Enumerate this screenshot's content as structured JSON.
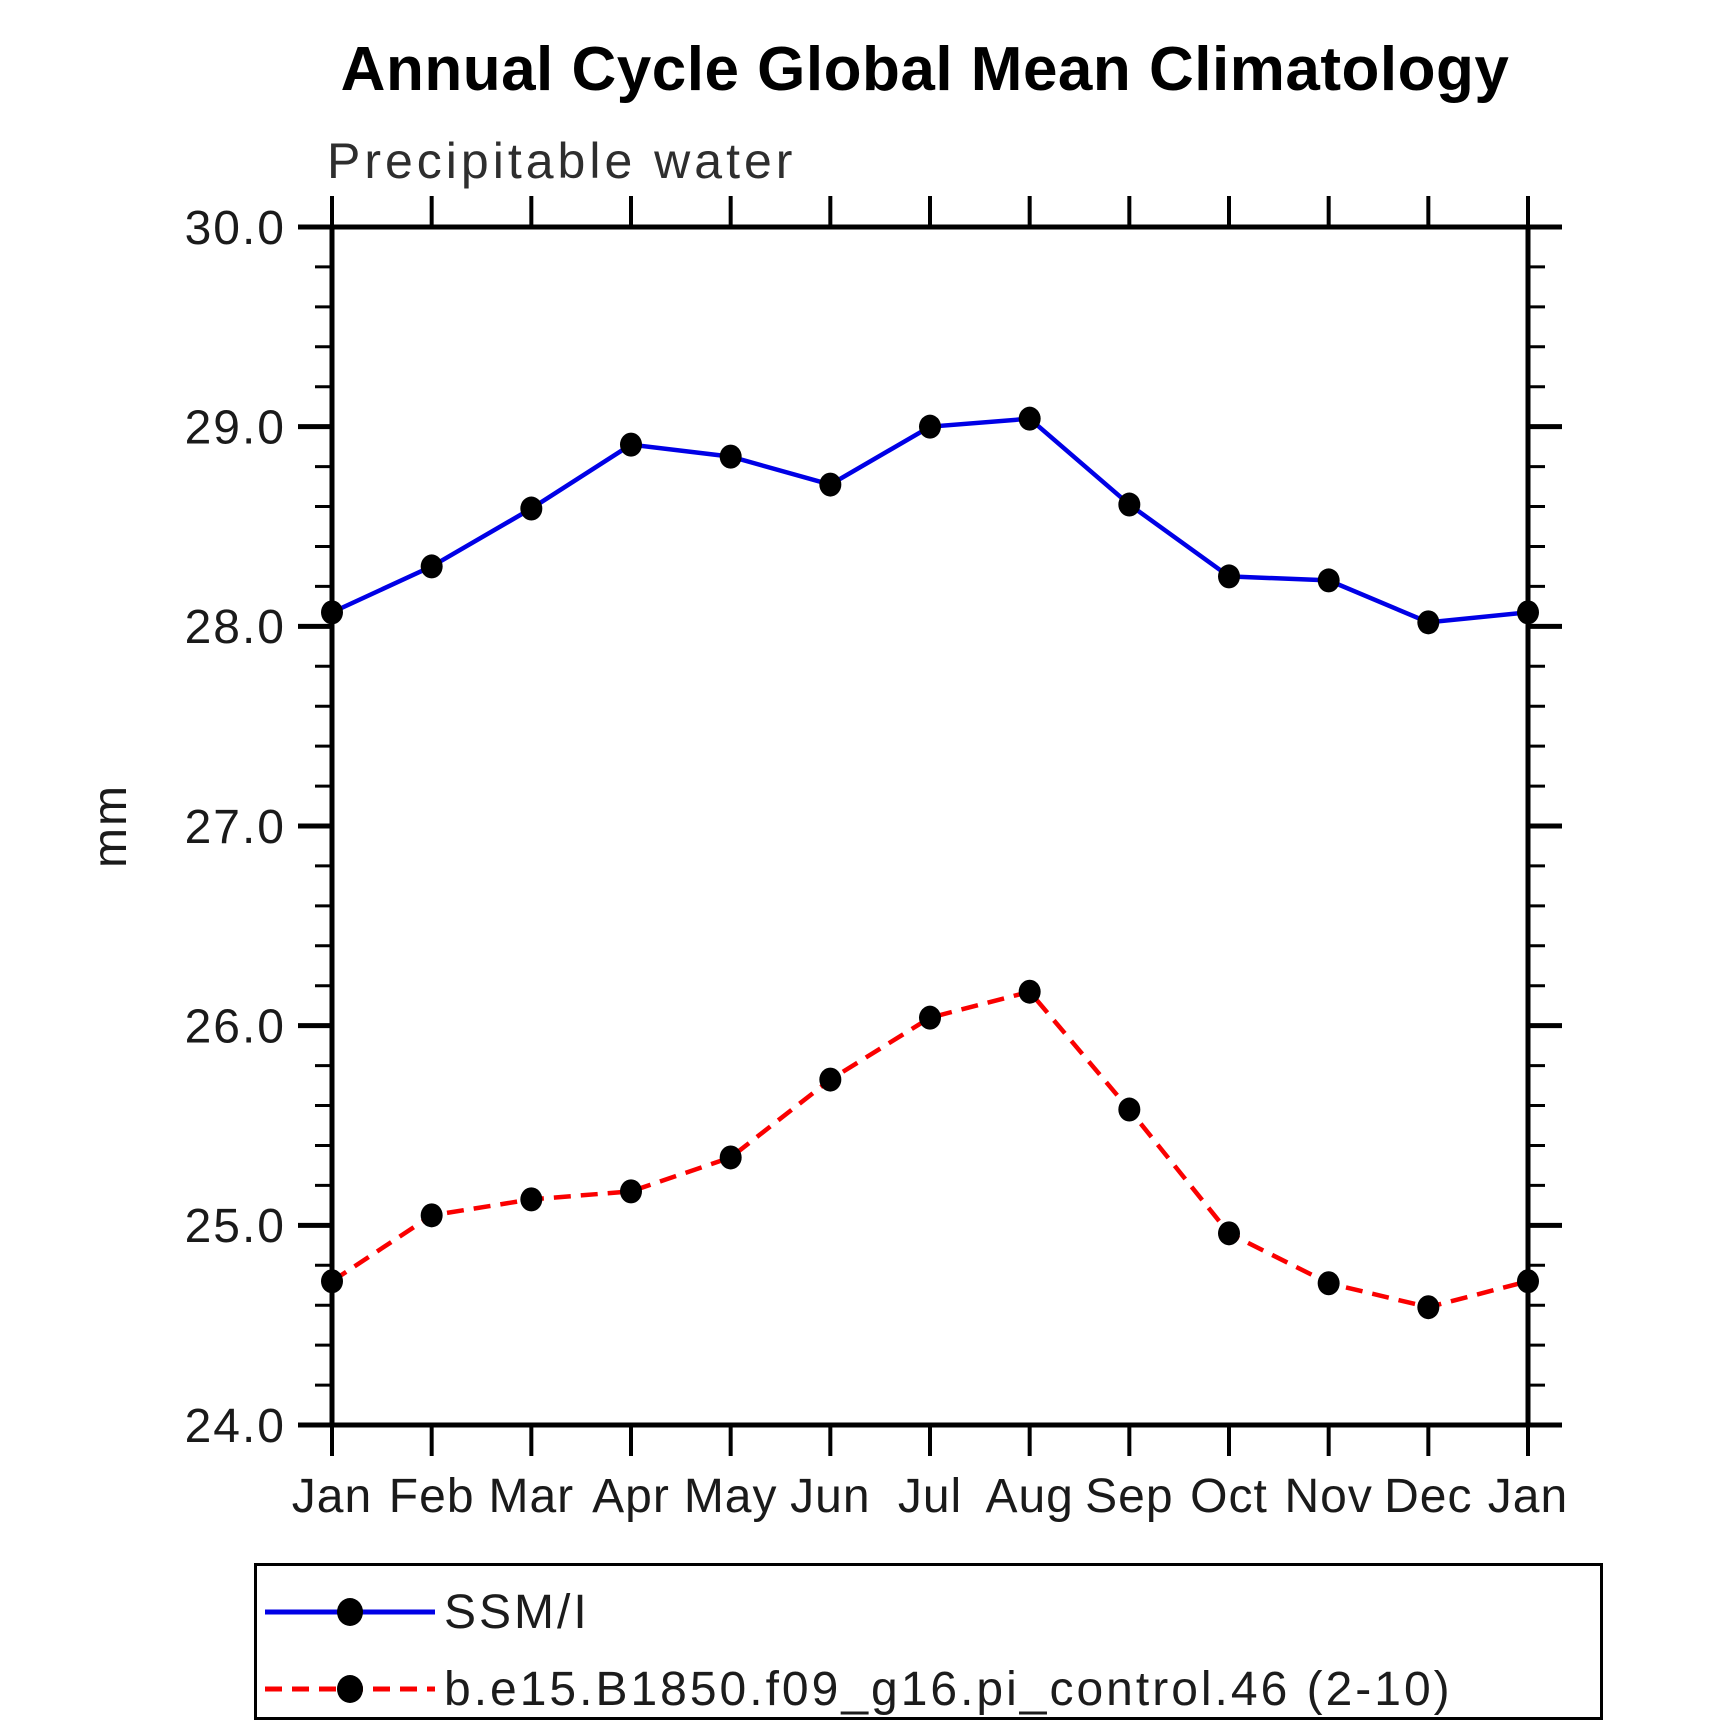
{
  "title": "Annual Cycle Global Mean Climatology",
  "subtitle": "Precipitable water",
  "chart_data": {
    "type": "line",
    "title": "Annual Cycle Global Mean Climatology",
    "subtitle": "Precipitable water",
    "xlabel": "",
    "ylabel": "mm",
    "categories": [
      "Jan",
      "Feb",
      "Mar",
      "Apr",
      "May",
      "Jun",
      "Jul",
      "Aug",
      "Sep",
      "Oct",
      "Nov",
      "Dec",
      "Jan"
    ],
    "ylim": [
      24.0,
      30.0
    ],
    "ytick_major_step": 1.0,
    "ytick_minor_step": 0.2,
    "ytick_labels": [
      "24.0",
      "25.0",
      "26.0",
      "27.0",
      "28.0",
      "29.0",
      "30.0"
    ],
    "grid": false,
    "legend_position": "bottom-left-box",
    "frame_color": "#000000",
    "marker_color": "#000000",
    "series": [
      {
        "name": "SSM/I",
        "color": "#0000e6",
        "line_style": "solid",
        "marker": "circle",
        "values": [
          28.07,
          28.3,
          28.59,
          28.91,
          28.85,
          28.71,
          29.0,
          29.04,
          28.61,
          28.25,
          28.23,
          28.02,
          28.07
        ]
      },
      {
        "name": "b.e15.B1850.f09_g16.pi_control.46 (2-10)",
        "color": "#fa0000",
        "line_style": "dashed",
        "marker": "circle",
        "values": [
          24.72,
          25.05,
          25.13,
          25.17,
          25.34,
          25.73,
          26.04,
          26.17,
          25.58,
          24.96,
          24.71,
          24.59,
          24.72
        ]
      }
    ]
  }
}
